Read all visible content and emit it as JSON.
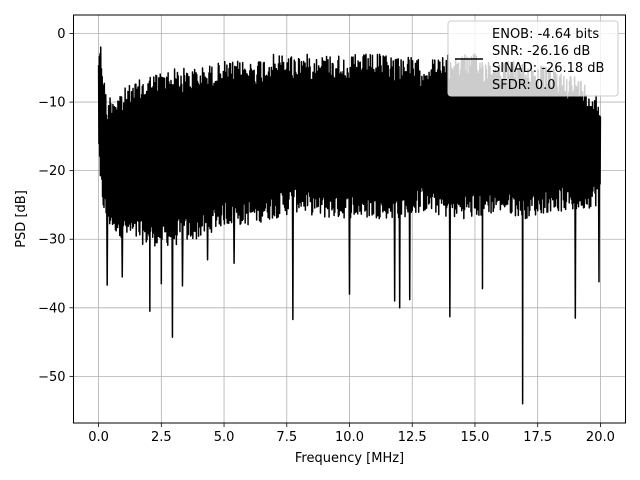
{
  "chart_data": {
    "type": "line",
    "xlabel": "Frequency [MHz]",
    "ylabel": "PSD [dB]",
    "xlim": [
      -1.0,
      21.0
    ],
    "ylim": [
      -56.8,
      2.7
    ],
    "xticks": [
      0.0,
      2.5,
      5.0,
      7.5,
      10.0,
      12.5,
      15.0,
      17.5,
      20.0
    ],
    "xtick_labels": [
      "0.0",
      "2.5",
      "5.0",
      "7.5",
      "10.0",
      "12.5",
      "15.0",
      "17.5",
      "20.0"
    ],
    "yticks": [
      0,
      -10,
      -20,
      -30,
      -40,
      -50
    ],
    "ytick_labels": [
      "0",
      "−10",
      "−20",
      "−30",
      "−40",
      "−50"
    ],
    "grid": true,
    "line_color": "#000000",
    "series": [
      {
        "name": "ENOB: -4.64 bits\nSNR: -26.16 dB\nSINAD: -26.18 dB\nSFDR: 0.0",
        "envelope": {
          "x": [
            0.0,
            0.05,
            0.3,
            1.0,
            2.0,
            3.0,
            4.0,
            5.0,
            6.0,
            7.0,
            8.0,
            9.0,
            10.0,
            11.0,
            12.0,
            13.0,
            14.0,
            15.0,
            16.0,
            17.0,
            18.0,
            19.0,
            20.0
          ],
          "upper": [
            -2,
            0,
            -9,
            -8,
            -6,
            -5,
            -5,
            -4,
            -4,
            -3,
            -3,
            -3,
            -3,
            -3,
            -3,
            -4,
            -3,
            -3,
            -4,
            -4,
            -5,
            -6,
            -9
          ],
          "lower": [
            -15,
            -23,
            -28,
            -30,
            -31,
            -31,
            -30,
            -28,
            -28,
            -27,
            -26,
            -27,
            -27,
            -27,
            -27,
            -26,
            -27,
            -27,
            -26,
            -27,
            -26,
            -26,
            -25
          ]
        },
        "dips": [
          {
            "x": 0.35,
            "y": -36.7
          },
          {
            "x": 0.95,
            "y": -35.5
          },
          {
            "x": 2.05,
            "y": -40.5
          },
          {
            "x": 2.5,
            "y": -36.5
          },
          {
            "x": 2.95,
            "y": -44.3
          },
          {
            "x": 3.35,
            "y": -36.8
          },
          {
            "x": 4.35,
            "y": -33.0
          },
          {
            "x": 5.4,
            "y": -33.5
          },
          {
            "x": 7.75,
            "y": -41.7
          },
          {
            "x": 10.0,
            "y": -38.0
          },
          {
            "x": 11.8,
            "y": -39.0
          },
          {
            "x": 12.0,
            "y": -40.0
          },
          {
            "x": 12.4,
            "y": -38.8
          },
          {
            "x": 14.0,
            "y": -41.3
          },
          {
            "x": 15.3,
            "y": -37.2
          },
          {
            "x": 16.9,
            "y": -54.0
          },
          {
            "x": 19.0,
            "y": -41.5
          },
          {
            "x": 19.95,
            "y": -36.2
          }
        ]
      }
    ],
    "legend": {
      "position": "top-right",
      "lines": [
        "ENOB: -4.64 bits",
        "SNR: -26.16 dB",
        "SINAD: -26.18 dB",
        "SFDR: 0.0"
      ]
    }
  }
}
